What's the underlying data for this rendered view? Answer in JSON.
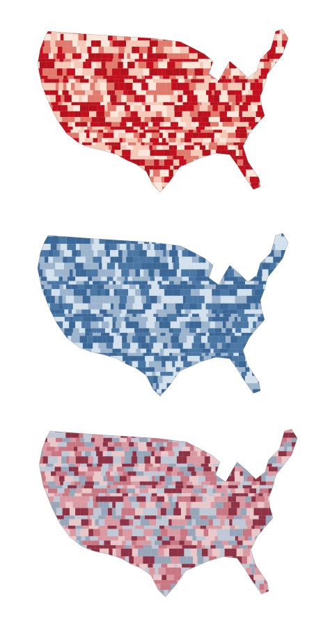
{
  "maps": [
    {
      "palette": [
        "#c40f1f",
        "#b3121d",
        "#e07a6d",
        "#f4c9b8",
        "#fbe6da"
      ]
    },
    {
      "palette": [
        "#3b6896",
        "#4a77a3",
        "#9db4cd",
        "#d3e1ed"
      ]
    },
    {
      "palette": [
        "#c87783",
        "#da9aa3",
        "#8e3246",
        "#97a7b9",
        "#bfc8d4",
        "#e9c8ca"
      ]
    }
  ]
}
